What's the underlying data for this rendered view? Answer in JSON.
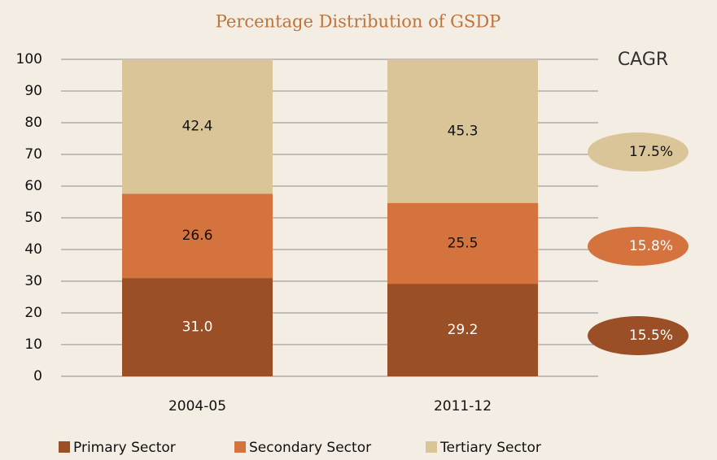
{
  "chart_data": {
    "type": "stacked_bar",
    "title": "Percentage Distribution of GSDP",
    "categories": [
      "2004-05",
      "2011-12"
    ],
    "series": [
      {
        "name": "Primary Sector",
        "color": "#9a4f26",
        "values": [
          31.0,
          29.2
        ],
        "value_labels": [
          "31.0",
          "29.2"
        ],
        "cagr": "15.5%"
      },
      {
        "name": "Secondary Sector",
        "color": "#d4733e",
        "values": [
          26.6,
          25.5
        ],
        "cagr": "15.8%"
      },
      {
        "name": "Tertiary Sector",
        "color": "#dac599",
        "values": [
          42.4,
          45.3
        ],
        "cagr": "17.5%"
      }
    ],
    "cagr_title": "CAGR",
    "ylim": [
      0,
      100
    ],
    "yticks": [
      0,
      10,
      20,
      30,
      40,
      50,
      60,
      70,
      80,
      90,
      100
    ],
    "grid": true,
    "legend": "bottom"
  }
}
